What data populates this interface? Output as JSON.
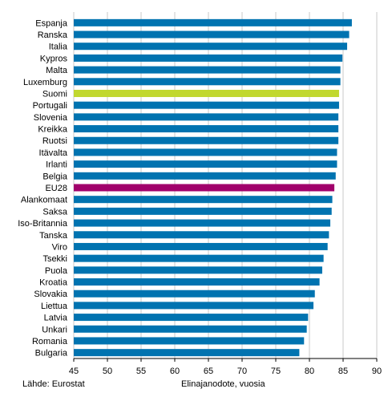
{
  "source": "Lähde: Eurostat",
  "chart_data": {
    "type": "bar",
    "orientation": "horizontal",
    "title": "",
    "xlabel": "Elinajanodote, vuosia",
    "ylabel": "",
    "xlim": [
      45,
      90
    ],
    "xticks": [
      45,
      50,
      55,
      60,
      65,
      70,
      75,
      80,
      85,
      90
    ],
    "grid": "vertical",
    "legend": "none",
    "categories": [
      "Espanja",
      "Ranska",
      "Italia",
      "Kypros",
      "Malta",
      "Luxemburg",
      "Suomi",
      "Portugali",
      "Slovenia",
      "Kreikka",
      "Ruotsi",
      "Itävalta",
      "Irlanti",
      "Belgia",
      "EU28",
      "Alankomaat",
      "Saksa",
      "Iso-Britannia",
      "Tanska",
      "Viro",
      "Tsekki",
      "Puola",
      "Kroatia",
      "Slovakia",
      "Liettua",
      "Latvia",
      "Unkari",
      "Romania",
      "Bulgaria"
    ],
    "values": [
      86.3,
      85.9,
      85.6,
      84.9,
      84.6,
      84.6,
      84.4,
      84.4,
      84.3,
      84.3,
      84.3,
      84.1,
      84.1,
      83.9,
      83.7,
      83.4,
      83.3,
      83.1,
      82.9,
      82.7,
      82.1,
      81.9,
      81.5,
      80.8,
      80.6,
      79.8,
      79.6,
      79.2,
      78.5
    ],
    "colors": {
      "default": "#0073b0",
      "Suomi": "#c1d82f",
      "EU28": "#a1006b"
    }
  }
}
